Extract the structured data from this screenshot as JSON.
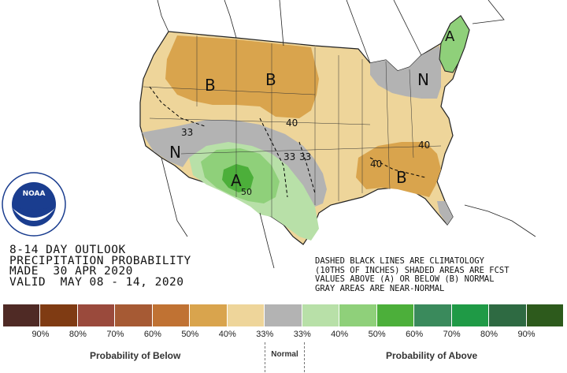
{
  "title_lines": {
    "line1": "8-14 DAY OUTLOOK",
    "line2": "PRECIPITATION PROBABILITY",
    "line3": "MADE  30 APR 2020",
    "line4": "VALID  MAY 08 - 14, 2020"
  },
  "notes": {
    "line1": "DASHED BLACK LINES ARE CLIMATOLOGY",
    "line2": "(10THS OF INCHES) SHADED AREAS ARE FCST",
    "line3": "VALUES ABOVE (A) OR BELOW (B) NORMAL",
    "line4": "GRAY AREAS ARE NEAR-NORMAL"
  },
  "logo": {
    "text": "NOAA",
    "ring_text": "NATIONAL OCEANIC AND ATMOSPHERIC ADMINISTRATION U.S. DEPARTMENT OF COMMERCE"
  },
  "map_labels": {
    "b_north_1": "B",
    "b_north_2": "B",
    "b_southeast": "B",
    "a_southwest": "A",
    "a_northeast": "A",
    "n_west": "N",
    "n_northeast": "N",
    "v33_west": "33",
    "v33_plains": "33",
    "v33_plains_2": "33",
    "v40_plains": "40",
    "v40_southeast": "40",
    "v40_east": "40",
    "v50_southwest": "50"
  },
  "legend": {
    "colors": [
      "#4f2a25",
      "#7f3b13",
      "#9a4a3c",
      "#a65a34",
      "#c07233",
      "#d9a44d",
      "#eed59a",
      "#b3b3b3",
      "#b8e0a8",
      "#8fd07a",
      "#4caf3a",
      "#3a8a5c",
      "#1f9a46",
      "#2e6a42",
      "#2d5a1c"
    ],
    "ticks": [
      "90%",
      "80%",
      "70%",
      "60%",
      "50%",
      "40%",
      "33%",
      "33%",
      "40%",
      "50%",
      "60%",
      "70%",
      "80%",
      "90%"
    ],
    "below_label": "Probability of Below",
    "normal_label": "Normal",
    "above_label": "Probability of Above"
  },
  "colors": {
    "below_33": "#eed59a",
    "below_40": "#d9a44d",
    "normal": "#b3b3b3",
    "above_33": "#b8e0a8",
    "above_40": "#8fd07a",
    "above_50": "#4caf3a"
  }
}
